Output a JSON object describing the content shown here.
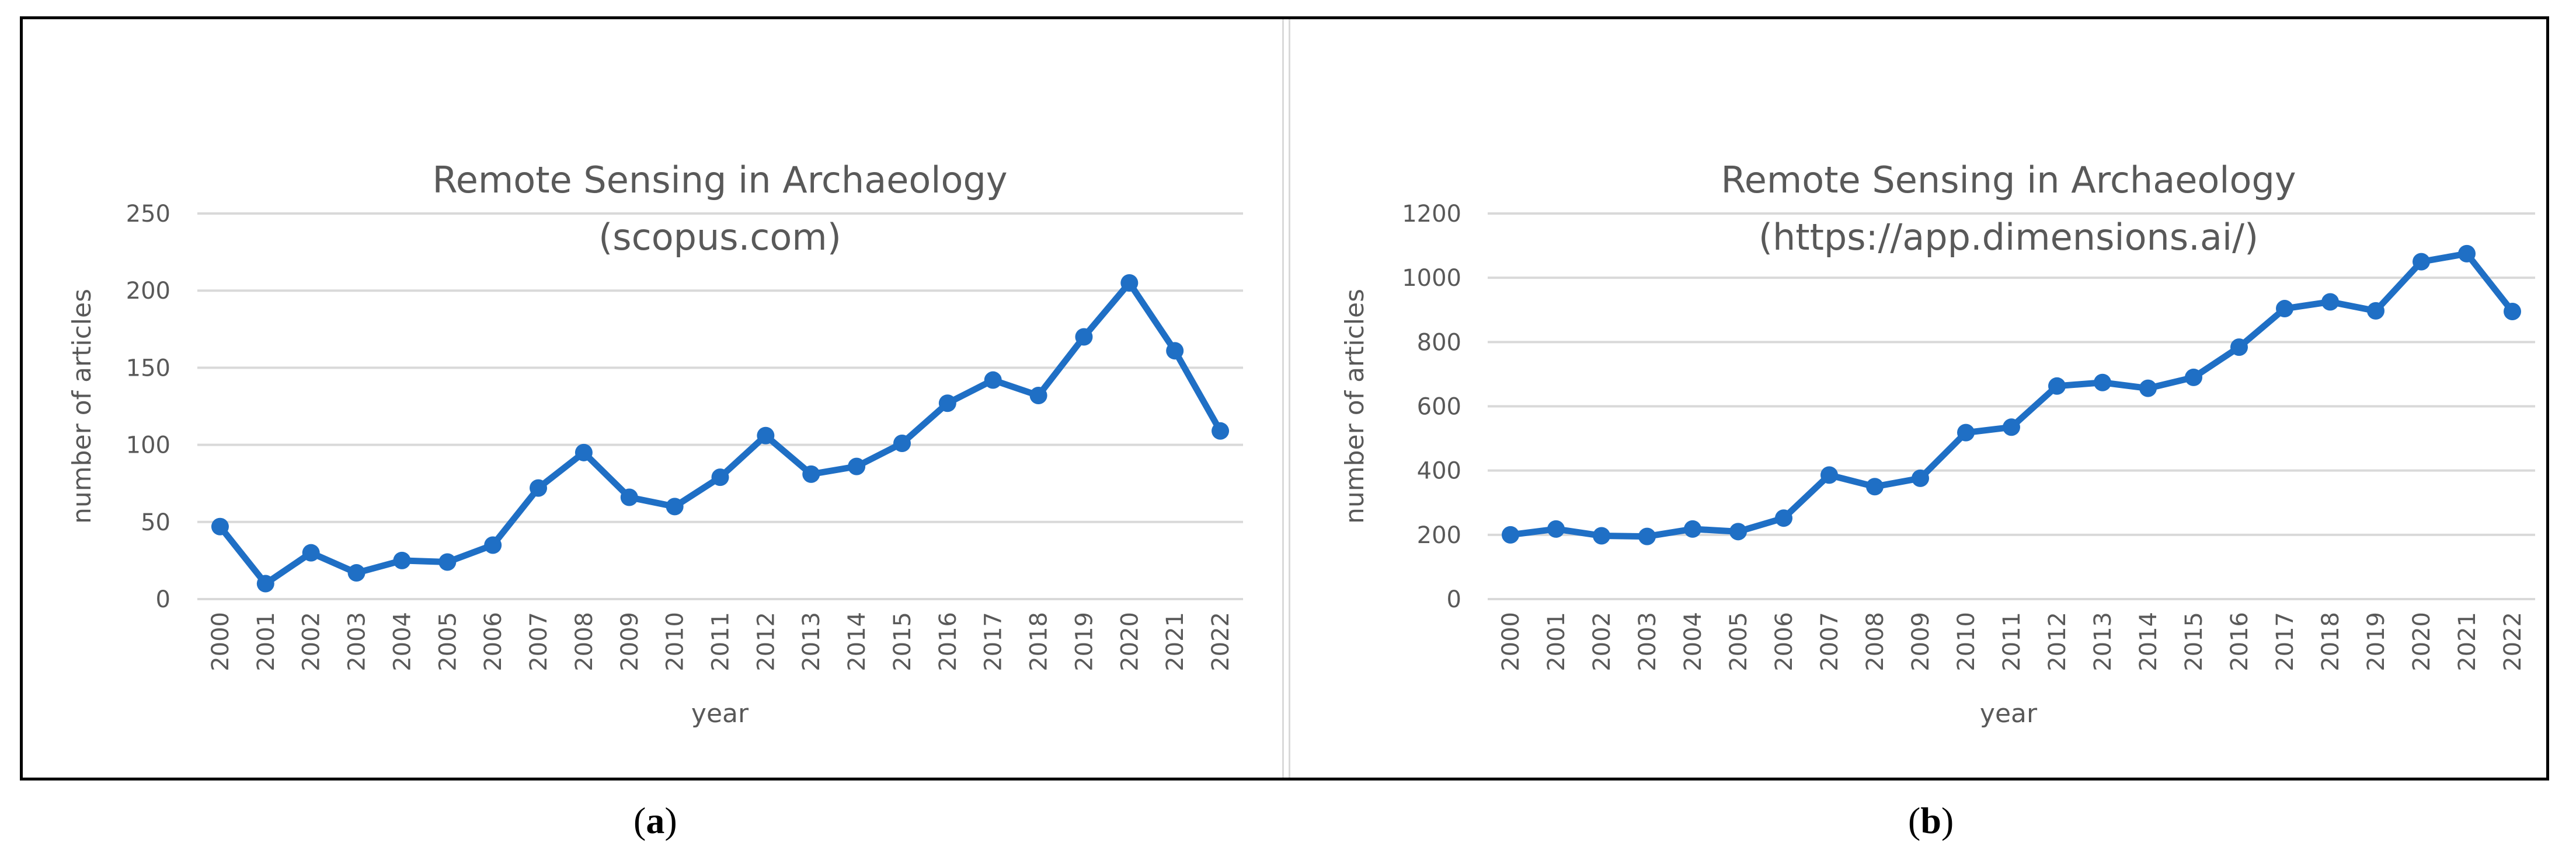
{
  "chart_data": [
    {
      "type": "line",
      "title": "Remote Sensing in Archaeology",
      "subtitle": "(scopus.com)",
      "xlabel": "year",
      "ylabel": "number of articles",
      "categories": [
        "2000",
        "2001",
        "2002",
        "2003",
        "2004",
        "2005",
        "2006",
        "2007",
        "2008",
        "2009",
        "2010",
        "2011",
        "2012",
        "2013",
        "2014",
        "2015",
        "2016",
        "2017",
        "2018",
        "2019",
        "2020",
        "2021",
        "2022"
      ],
      "values": [
        47,
        10,
        30,
        17,
        25,
        24,
        35,
        72,
        95,
        66,
        60,
        79,
        106,
        81,
        86,
        101,
        127,
        142,
        132,
        170,
        205,
        161,
        109
      ],
      "ylim": [
        0,
        250
      ],
      "yticks": [
        "0",
        "50",
        "100",
        "150",
        "200",
        "250"
      ],
      "grid": true,
      "color": "#1f6fc5",
      "panel_label": "a"
    },
    {
      "type": "line",
      "title": "Remote Sensing in Archaeology",
      "subtitle": "(https://app.dimensions.ai/)",
      "xlabel": "year",
      "ylabel": "number of articles",
      "categories": [
        "2000",
        "2001",
        "2002",
        "2003",
        "2004",
        "2005",
        "2006",
        "2007",
        "2008",
        "2009",
        "2010",
        "2011",
        "2012",
        "2013",
        "2014",
        "2015",
        "2016",
        "2017",
        "2018",
        "2019",
        "2020",
        "2021",
        "2022"
      ],
      "values": [
        200,
        218,
        197,
        195,
        218,
        210,
        252,
        386,
        350,
        376,
        518,
        535,
        663,
        674,
        656,
        690,
        784,
        904,
        925,
        897,
        1050,
        1075,
        895
      ],
      "ylim": [
        0,
        1200
      ],
      "yticks": [
        "0",
        "200",
        "400",
        "600",
        "800",
        "1000",
        "1200"
      ],
      "grid": true,
      "color": "#1f6fc5",
      "panel_label": "b"
    }
  ]
}
